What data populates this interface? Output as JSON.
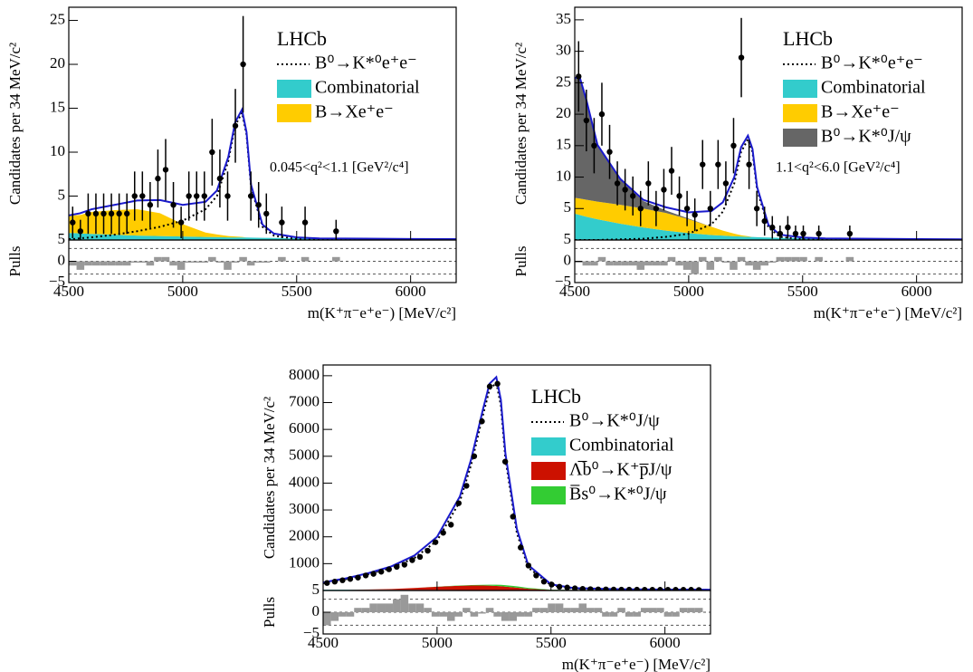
{
  "chart_data": [
    {
      "type": "fit",
      "experiment": "LHCb",
      "annotation": "0.045<q²<1.1 [GeV²/c⁴]",
      "ylabel": "Candidates per 34 MeV/c²",
      "xlabel": "m(K⁺π⁻e⁺e⁻) [MeV/c²]",
      "pull_label": "Pulls",
      "xlim": [
        4500,
        6200
      ],
      "xticks": [
        4500,
        5000,
        5500,
        6000
      ],
      "ylim": [
        0,
        26.5
      ],
      "yticks": [
        5,
        10,
        15,
        20,
        25
      ],
      "points": {
        "color": "#000000",
        "x": [
          4517,
          4551,
          4585,
          4619,
          4653,
          4687,
          4721,
          4755,
          4789,
          4823,
          4857,
          4891,
          4925,
          4959,
          4993,
          5027,
          5061,
          5095,
          5129,
          5163,
          5197,
          5231,
          5265,
          5299,
          5333,
          5367,
          5435,
          5537,
          5673
        ],
        "values": [
          2,
          1,
          3,
          3,
          3,
          3,
          3,
          3,
          5,
          5,
          4,
          7,
          8,
          4,
          2,
          5,
          5,
          5,
          10,
          7,
          5,
          13,
          20,
          5,
          4,
          3,
          2,
          2,
          1
        ],
        "errors": [
          1.8,
          1.3,
          2.3,
          2.3,
          2.3,
          2.3,
          2.3,
          2.3,
          2.8,
          2.8,
          2.6,
          3.3,
          3.5,
          2.6,
          1.8,
          2.8,
          2.8,
          2.8,
          3.8,
          3.3,
          2.8,
          4.2,
          5.5,
          2.8,
          2.6,
          2.3,
          1.8,
          1.8,
          1.3
        ]
      },
      "curve_x": [
        4500,
        4520,
        4550,
        4600,
        4700,
        4800,
        4900,
        5000,
        5100,
        5150,
        5200,
        5230,
        5260,
        5280,
        5300,
        5350,
        5400,
        5500,
        5600,
        5800,
        6000,
        6200
      ],
      "fit": {
        "color": "#1a1acc",
        "values": [
          2.8,
          2.9,
          3.05,
          3.5,
          4.0,
          4.5,
          4.55,
          4.0,
          4.35,
          5.63,
          9.45,
          13.4,
          14.85,
          12.28,
          6.27,
          1.75,
          0.73,
          0.3,
          0.18,
          0.15,
          0.12,
          0.1
        ]
      },
      "series": [
        {
          "name": "B⁰→K*⁰e⁺e⁻",
          "color": "#000000",
          "style": "dotted",
          "values": [
            0.1,
            0.1,
            0.2,
            0.3,
            0.6,
            1.0,
            1.5,
            2.2,
            3.5,
            5.0,
            9.0,
            13,
            14.5,
            12,
            6,
            1.5,
            0.5,
            0.1,
            0,
            0,
            0,
            0
          ]
        },
        {
          "name": "Combinatorial",
          "color": "#33cccc",
          "style": "area",
          "values": [
            0.8,
            0.8,
            0.75,
            0.7,
            0.6,
            0.5,
            0.45,
            0.4,
            0.35,
            0.33,
            0.3,
            0.3,
            0.3,
            0.28,
            0.27,
            0.25,
            0.23,
            0.2,
            0.18,
            0.15,
            0.12,
            0.1
          ]
        },
        {
          "name": "B→Xe⁺e⁻",
          "color": "#ffcc00",
          "style": "area",
          "values": [
            1.9,
            2.0,
            2.1,
            2.5,
            2.8,
            3.0,
            2.6,
            1.4,
            0.5,
            0.3,
            0.15,
            0.1,
            0.05,
            0,
            0,
            0,
            0,
            0,
            0,
            0,
            0,
            0
          ]
        }
      ],
      "pulls": {
        "color": "#999999",
        "ylim": [
          -5,
          5
        ],
        "yticks": [
          {
            "value": -5,
            "label": "−5"
          },
          0,
          5
        ],
        "lines": [
          -3,
          0,
          3
        ],
        "values": [
          -1,
          -2,
          -1,
          -1,
          -1,
          -1,
          -1,
          -1,
          0,
          0,
          -1,
          1,
          1,
          -1,
          -2,
          0,
          0,
          0,
          1,
          0,
          -2,
          0,
          1,
          -1,
          0,
          0,
          1,
          1,
          1
        ]
      }
    },
    {
      "type": "fit",
      "experiment": "LHCb",
      "annotation": "1.1<q²<6.0 [GeV²/c⁴]",
      "ylabel": "Candidates per 34 MeV/c²",
      "xlabel": "m(K⁺π⁻e⁺e⁻) [MeV/c²]",
      "pull_label": "Pulls",
      "xlim": [
        4500,
        6200
      ],
      "xticks": [
        4500,
        5000,
        5500,
        6000
      ],
      "ylim": [
        0,
        37
      ],
      "yticks": [
        5,
        10,
        15,
        20,
        25,
        30,
        35
      ],
      "points": {
        "color": "#000000",
        "x": [
          4517,
          4551,
          4585,
          4619,
          4653,
          4687,
          4721,
          4755,
          4789,
          4823,
          4857,
          4891,
          4925,
          4959,
          4993,
          5027,
          5061,
          5095,
          5129,
          5163,
          5197,
          5231,
          5265,
          5299,
          5333,
          5367,
          5401,
          5435,
          5469,
          5503,
          5571,
          5707
        ],
        "values": [
          26,
          19,
          15,
          20,
          14,
          9,
          8,
          7,
          5,
          9,
          5,
          8,
          11,
          7,
          5,
          4,
          12,
          5,
          12,
          9,
          15,
          29,
          12,
          5,
          3,
          2,
          1,
          2,
          1,
          1,
          1,
          1
        ],
        "errors": [
          5.6,
          4.9,
          4.4,
          5,
          4.3,
          3.5,
          3.3,
          3.1,
          2.8,
          3.5,
          2.8,
          3.3,
          3.8,
          3.1,
          2.8,
          2.6,
          3.9,
          2.8,
          3.9,
          3.5,
          4.4,
          6.3,
          3.9,
          2.8,
          2.3,
          1.8,
          1.3,
          1.8,
          1.3,
          1.3,
          1.3,
          1.3
        ]
      },
      "curve_x": [
        4500,
        4520,
        4550,
        4600,
        4700,
        4800,
        4900,
        5000,
        5100,
        5150,
        5200,
        5230,
        5260,
        5280,
        5300,
        5350,
        5400,
        5500,
        5600,
        5800,
        6000,
        6200
      ],
      "fit": {
        "color": "#1a1acc",
        "values": [
          25.7,
          26.1,
          22.4,
          15.1,
          9.7,
          6.4,
          5.2,
          4.4,
          4.6,
          6.0,
          10.0,
          14.75,
          16.6,
          14.48,
          8.45,
          2.4,
          0.85,
          0.4,
          0.25,
          0.2,
          0.15,
          0.1
        ]
      },
      "series": [
        {
          "name": "B⁰→K*⁰e⁺e⁻",
          "color": "#000000",
          "style": "dotted",
          "values": [
            0,
            0,
            0,
            0,
            0.1,
            0.2,
            0.5,
            1.0,
            2.5,
            4.5,
            9,
            14,
            16,
            14,
            8,
            2,
            0.5,
            0.1,
            0,
            0,
            0,
            0
          ]
        },
        {
          "name": "Combinatorial",
          "color": "#33cccc",
          "style": "area",
          "values": [
            4.2,
            4.0,
            3.7,
            3.3,
            2.6,
            2.0,
            1.5,
            1.1,
            0.8,
            0.7,
            0.6,
            0.55,
            0.5,
            0.48,
            0.45,
            0.4,
            0.35,
            0.3,
            0.25,
            0.2,
            0.15,
            0.1
          ]
        },
        {
          "name": "B→Xe⁺e⁻",
          "color": "#ffcc00",
          "style": "area",
          "values": [
            2.5,
            2.6,
            2.7,
            2.8,
            3.0,
            3.0,
            2.8,
            2.2,
            1.3,
            0.8,
            0.4,
            0.2,
            0.1,
            0,
            0,
            0,
            0,
            0,
            0,
            0,
            0,
            0
          ]
        },
        {
          "name": "B⁰→K*⁰J/ψ",
          "color": "#666666",
          "style": "area",
          "values": [
            19,
            19.5,
            16,
            9,
            4,
            1.2,
            0.4,
            0.1,
            0,
            0,
            0,
            0,
            0,
            0,
            0,
            0,
            0,
            0,
            0,
            0,
            0,
            0
          ]
        }
      ],
      "pulls": {
        "color": "#999999",
        "ylim": [
          -5,
          5
        ],
        "yticks": [
          {
            "value": -5,
            "label": "−5"
          },
          0,
          5
        ],
        "lines": [
          -3,
          0,
          3
        ],
        "values": [
          0,
          -1,
          -1,
          1,
          -1,
          -1,
          -1,
          -1,
          -2,
          -1,
          -1,
          -1,
          1,
          -1,
          -2,
          -3,
          1,
          -2,
          1,
          0,
          -2,
          1,
          -1,
          -2,
          -1,
          0,
          1,
          1,
          1,
          1,
          1,
          1
        ]
      }
    },
    {
      "type": "fit",
      "experiment": "LHCb",
      "ylabel": "Candidates per 34 MeV/c²",
      "xlabel": "m(K⁺π⁻e⁺e⁻) [MeV/c²]",
      "pull_label": "Pulls",
      "xlim": [
        4500,
        6200
      ],
      "xticks": [
        4500,
        5000,
        5500,
        6000
      ],
      "ylim": [
        0,
        8400
      ],
      "yticks": [
        1000,
        2000,
        3000,
        4000,
        5000,
        6000,
        7000,
        8000
      ],
      "points": {
        "color": "#000000",
        "x": [
          4517,
          4551,
          4585,
          4619,
          4653,
          4687,
          4721,
          4755,
          4789,
          4823,
          4857,
          4891,
          4925,
          4959,
          4993,
          5027,
          5061,
          5095,
          5129,
          5163,
          5197,
          5231,
          5265,
          5299,
          5333,
          5367,
          5401,
          5435,
          5469,
          5503,
          5537,
          5571,
          5605,
          5639,
          5673,
          5707,
          5741,
          5775,
          5809,
          5843,
          5877,
          5911,
          5945,
          5979,
          6013,
          6047,
          6081,
          6115,
          6149
        ],
        "values": [
          280,
          330,
          380,
          430,
          480,
          560,
          620,
          700,
          790,
          880,
          960,
          1130,
          1250,
          1480,
          1800,
          2150,
          2450,
          3250,
          3900,
          5000,
          6300,
          7600,
          7700,
          4800,
          2750,
          1600,
          930,
          560,
          330,
          220,
          140,
          110,
          80,
          60,
          50,
          40,
          40,
          35,
          30,
          30,
          30,
          25,
          25,
          25,
          25,
          25,
          25,
          25,
          20
        ],
        "errors": [
          17,
          18,
          19,
          21,
          22,
          24,
          25,
          26,
          28,
          30,
          31,
          34,
          35,
          38,
          42,
          46,
          49,
          57,
          62,
          71,
          79,
          87,
          88,
          69,
          52,
          40,
          30,
          24,
          18,
          15,
          12,
          10,
          9,
          8,
          7,
          6,
          6,
          6,
          5,
          5,
          5,
          5,
          5,
          5,
          5,
          5,
          5,
          5,
          4
        ]
      },
      "curve_x": [
        4500,
        4520,
        4550,
        4600,
        4700,
        4800,
        4900,
        5000,
        5100,
        5150,
        5200,
        5230,
        5260,
        5280,
        5300,
        5350,
        5400,
        5500,
        5600,
        5800,
        6000,
        6200
      ],
      "fit": {
        "color": "#1a1acc",
        "values": [
          300,
          330,
          380,
          450,
          650,
          900,
          1300,
          2000,
          3500,
          4900,
          6700,
          7700,
          7950,
          7100,
          5100,
          2300,
          950,
          230,
          90,
          45,
          35,
          30
        ]
      },
      "series": [
        {
          "name": "B⁰→K*⁰J/ψ",
          "color": "#000000",
          "style": "dotted",
          "values": [
            270,
            300,
            350,
            420,
            614,
            846,
            1206,
            1855,
            3312,
            4698,
            6489,
            7484,
            7735,
            6890,
            4900,
            2146,
            851,
            199,
            75,
            34,
            25,
            20
          ]
        },
        {
          "name": "Combinatorial",
          "color": "#33cccc",
          "style": "area",
          "values": [
            30,
            30,
            30,
            28,
            26,
            24,
            22,
            20,
            18,
            17,
            16,
            16,
            15,
            15,
            15,
            14,
            14,
            13,
            12,
            11,
            10,
            10
          ]
        },
        {
          "name": "Λ̅b⁰→K⁺p̅J/ψ",
          "color": "#cc1100",
          "style": "area",
          "values": [
            0,
            0,
            0,
            2,
            10,
            30,
            70,
            120,
            160,
            170,
            170,
            165,
            155,
            145,
            130,
            90,
            50,
            10,
            2,
            0,
            0,
            0
          ]
        },
        {
          "name": "B̅s⁰→K*⁰J/ψ",
          "color": "#33cc33",
          "style": "area",
          "values": [
            0,
            0,
            0,
            0,
            0,
            0,
            2,
            5,
            10,
            15,
            25,
            35,
            45,
            50,
            55,
            50,
            35,
            8,
            1,
            0,
            0,
            0
          ]
        }
      ],
      "pulls": {
        "color": "#999999",
        "ylim": [
          -5,
          5
        ],
        "yticks": [
          {
            "value": -5,
            "label": "−5"
          },
          0,
          5
        ],
        "lines": [
          -3,
          0,
          3
        ],
        "values": [
          -3,
          -2,
          -1,
          -1,
          1,
          1,
          2,
          2,
          2,
          3,
          4,
          2,
          2,
          1,
          -1,
          -1,
          -2,
          -1,
          1,
          -1,
          0,
          1,
          -1,
          -2,
          -2,
          -1,
          -1,
          1,
          1,
          2,
          2,
          1,
          1,
          2,
          1,
          1,
          -1,
          -1,
          1,
          -1,
          -1,
          1,
          1,
          1,
          -1,
          -1,
          1,
          1,
          1
        ]
      }
    }
  ]
}
